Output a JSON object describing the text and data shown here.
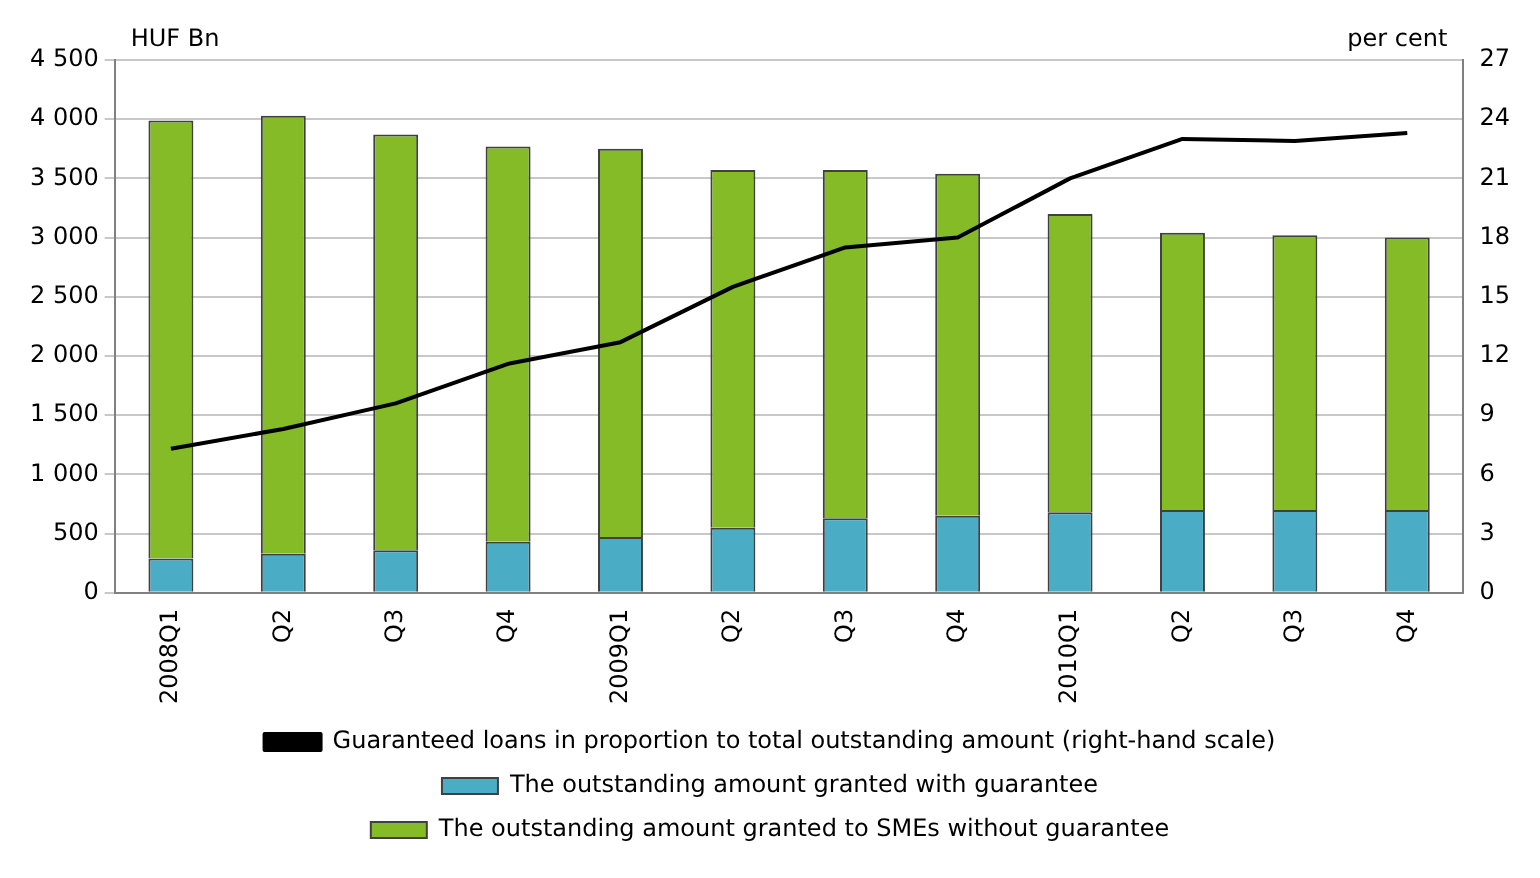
{
  "chart_data": {
    "type": "bar",
    "stacked": true,
    "ylabel": "HUF Bn",
    "y2label": "per cent",
    "categories": [
      "2008Q1",
      "Q2",
      "Q3",
      "Q4",
      "2009Q1",
      "Q2",
      "Q3",
      "Q4",
      "2010Q1",
      "Q2",
      "Q3",
      "Q4"
    ],
    "series": [
      {
        "name": "The outstanding amount granted with guarantee",
        "color": "#4bacc6",
        "values": [
          290,
          330,
          360,
          430,
          470,
          550,
          630,
          650,
          680,
          700,
          700,
          700
        ]
      },
      {
        "name": "The outstanding amount granted to SMEs without guarantee",
        "color": "#84bb27",
        "values": [
          3700,
          3700,
          3510,
          3340,
          3280,
          3020,
          2940,
          2890,
          2520,
          2340,
          2320,
          2300
        ]
      },
      {
        "name": "Guaranteed loans in proportion to total outstanding amount (right-hand scale)",
        "type": "line",
        "axis": "y2",
        "color": "#000000",
        "values": [
          7.3,
          8.3,
          9.6,
          11.6,
          12.7,
          15.5,
          17.5,
          18.0,
          21.0,
          23.0,
          22.9,
          23.3
        ]
      }
    ],
    "ylim": [
      0,
      4500
    ],
    "yticks": [
      0,
      500,
      1000,
      1500,
      2000,
      2500,
      3000,
      3500,
      4000,
      4500
    ],
    "y2lim": [
      0,
      27
    ],
    "y2ticks": [
      0,
      3,
      6,
      9,
      12,
      15,
      18,
      21,
      24,
      27
    ],
    "grid": "y",
    "legend": "bottom",
    "marker": "none",
    "line_style": "solid"
  }
}
